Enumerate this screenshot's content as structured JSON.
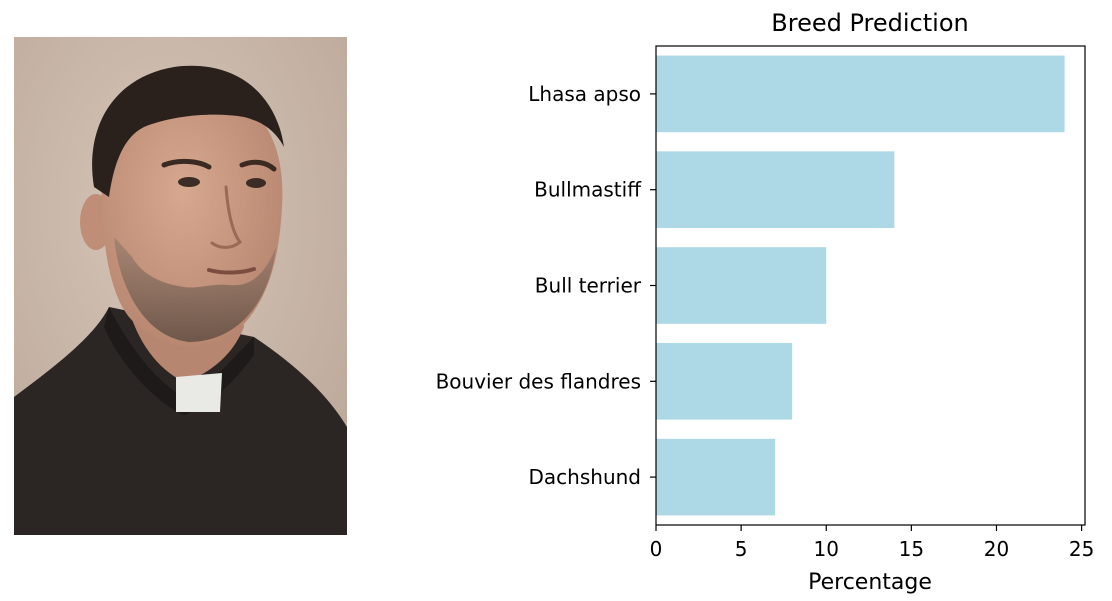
{
  "chart_data": {
    "type": "bar",
    "orientation": "horizontal",
    "title": "Breed Prediction",
    "xlabel": "Percentage",
    "ylabel": "",
    "categories": [
      "Lhasa apso",
      "Bullmastiff",
      "Bull terrier",
      "Bouvier des flandres",
      "Dachshund"
    ],
    "values": [
      24,
      14,
      10,
      8,
      7
    ],
    "xlim": [
      0,
      25.2
    ],
    "xticks": [
      0,
      5,
      10,
      15,
      20,
      25
    ],
    "grid": false,
    "bar_color": "#add8e6"
  },
  "image": {
    "description": "Portrait photo of a man in black clerical shirt with white collar",
    "colors": {
      "background": "#c8b5a6",
      "shirt": "#2b2523",
      "collar": "#e9e9e6",
      "skin": "#c99a83",
      "hair": "#2a211d"
    }
  }
}
